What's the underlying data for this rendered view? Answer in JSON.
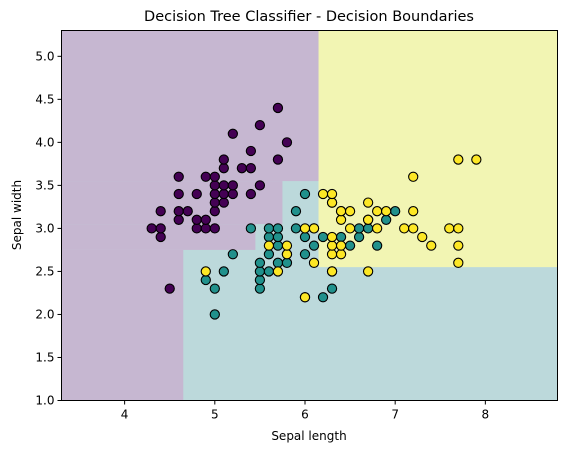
{
  "chart_data": {
    "type": "scatter",
    "title": "Decision Tree Classifier - Decision Boundaries",
    "xlabel": "Sepal length",
    "ylabel": "Sepal width",
    "xlim": [
      3.3,
      8.8
    ],
    "ylim": [
      1.0,
      5.3
    ],
    "xticks": [
      4,
      5,
      6,
      7,
      8
    ],
    "yticks": [
      1.0,
      1.5,
      2.0,
      2.5,
      3.0,
      3.5,
      4.0,
      4.5,
      5.0
    ],
    "xtick_labels": [
      "4",
      "5",
      "6",
      "7",
      "8"
    ],
    "ytick_labels": [
      "1.0",
      "1.5",
      "2.0",
      "2.5",
      "3.0",
      "3.5",
      "4.0",
      "4.5",
      "5.0"
    ],
    "grid": false,
    "legend": "none",
    "colors": {
      "class0": "#440154",
      "class1": "#21918c",
      "class2": "#fde725",
      "region0": "#c6b7d1",
      "region1": "#bcd9db",
      "region2": "#f2f5b3",
      "edge": "#000000"
    },
    "decision_regions": [
      {
        "class": 0,
        "rule": "sepal length < 4.65 and sepal width < 2.75"
      },
      {
        "class": 0,
        "rule": "sepal length < 5.45 and 2.75 <= sepal width < 3.05"
      },
      {
        "class": 0,
        "rule": "sepal length < 6.15 and sepal width >= 3.55"
      },
      {
        "class": 0,
        "rule": "sepal length < 5.75 and 3.05 <= sepal width < 3.55"
      },
      {
        "class": 2,
        "rule": "sepal length >= 6.15 and sepal width >= 2.55"
      },
      {
        "class": 1,
        "rule": "otherwise"
      }
    ],
    "series": [
      {
        "class": 0,
        "points": [
          [
            4.3,
            3.0
          ],
          [
            4.4,
            2.9
          ],
          [
            4.4,
            3.0
          ],
          [
            4.4,
            3.2
          ],
          [
            4.5,
            2.3
          ],
          [
            4.6,
            3.1
          ],
          [
            4.6,
            3.2
          ],
          [
            4.6,
            3.4
          ],
          [
            4.6,
            3.6
          ],
          [
            4.7,
            3.2
          ],
          [
            4.8,
            3.0
          ],
          [
            4.8,
            3.1
          ],
          [
            4.8,
            3.4
          ],
          [
            4.9,
            3.0
          ],
          [
            4.9,
            3.1
          ],
          [
            4.9,
            3.6
          ],
          [
            5.0,
            3.0
          ],
          [
            5.0,
            3.2
          ],
          [
            5.0,
            3.3
          ],
          [
            5.0,
            3.4
          ],
          [
            5.0,
            3.5
          ],
          [
            5.0,
            3.6
          ],
          [
            5.1,
            3.3
          ],
          [
            5.1,
            3.4
          ],
          [
            5.1,
            3.5
          ],
          [
            5.1,
            3.7
          ],
          [
            5.1,
            3.8
          ],
          [
            5.2,
            3.4
          ],
          [
            5.2,
            3.5
          ],
          [
            5.2,
            4.1
          ],
          [
            5.3,
            3.7
          ],
          [
            5.4,
            3.4
          ],
          [
            5.4,
            3.7
          ],
          [
            5.4,
            3.9
          ],
          [
            5.5,
            3.5
          ],
          [
            5.5,
            4.2
          ],
          [
            5.7,
            3.8
          ],
          [
            5.7,
            4.4
          ],
          [
            5.8,
            4.0
          ]
        ]
      },
      {
        "class": 1,
        "points": [
          [
            4.9,
            2.4
          ],
          [
            5.0,
            2.0
          ],
          [
            5.0,
            2.3
          ],
          [
            5.1,
            2.5
          ],
          [
            5.2,
            2.7
          ],
          [
            5.4,
            3.0
          ],
          [
            5.5,
            2.3
          ],
          [
            5.5,
            2.4
          ],
          [
            5.5,
            2.5
          ],
          [
            5.5,
            2.6
          ],
          [
            5.6,
            2.5
          ],
          [
            5.6,
            2.7
          ],
          [
            5.6,
            2.9
          ],
          [
            5.6,
            3.0
          ],
          [
            5.7,
            2.6
          ],
          [
            5.7,
            2.8
          ],
          [
            5.7,
            2.9
          ],
          [
            5.7,
            3.0
          ],
          [
            5.8,
            2.6
          ],
          [
            5.8,
            2.7
          ],
          [
            5.9,
            3.0
          ],
          [
            5.9,
            3.2
          ],
          [
            6.0,
            2.2
          ],
          [
            6.0,
            2.7
          ],
          [
            6.0,
            2.9
          ],
          [
            6.0,
            3.4
          ],
          [
            6.1,
            2.8
          ],
          [
            6.1,
            3.0
          ],
          [
            6.2,
            2.2
          ],
          [
            6.2,
            2.9
          ],
          [
            6.3,
            2.3
          ],
          [
            6.3,
            2.5
          ],
          [
            6.3,
            3.3
          ],
          [
            6.4,
            2.9
          ],
          [
            6.4,
            3.2
          ],
          [
            6.5,
            2.8
          ],
          [
            6.6,
            2.9
          ],
          [
            6.6,
            3.0
          ],
          [
            6.7,
            3.0
          ],
          [
            6.7,
            3.1
          ],
          [
            6.8,
            2.8
          ],
          [
            6.9,
            3.1
          ],
          [
            7.0,
            3.2
          ]
        ]
      },
      {
        "class": 2,
        "points": [
          [
            4.9,
            2.5
          ],
          [
            5.6,
            2.8
          ],
          [
            5.7,
            2.5
          ],
          [
            5.8,
            2.7
          ],
          [
            5.8,
            2.8
          ],
          [
            6.0,
            2.2
          ],
          [
            6.0,
            3.0
          ],
          [
            6.1,
            2.6
          ],
          [
            6.1,
            3.0
          ],
          [
            6.2,
            3.4
          ],
          [
            6.3,
            2.5
          ],
          [
            6.3,
            2.7
          ],
          [
            6.3,
            2.8
          ],
          [
            6.3,
            2.9
          ],
          [
            6.3,
            3.3
          ],
          [
            6.3,
            3.4
          ],
          [
            6.4,
            2.7
          ],
          [
            6.4,
            2.8
          ],
          [
            6.4,
            3.1
          ],
          [
            6.4,
            3.2
          ],
          [
            6.5,
            3.0
          ],
          [
            6.5,
            3.2
          ],
          [
            6.7,
            2.5
          ],
          [
            6.7,
            3.1
          ],
          [
            6.7,
            3.3
          ],
          [
            6.8,
            3.0
          ],
          [
            6.8,
            3.2
          ],
          [
            6.9,
            3.2
          ],
          [
            7.1,
            3.0
          ],
          [
            7.2,
            3.0
          ],
          [
            7.2,
            3.2
          ],
          [
            7.2,
            3.6
          ],
          [
            7.3,
            2.9
          ],
          [
            7.4,
            2.8
          ],
          [
            7.6,
            3.0
          ],
          [
            7.7,
            2.6
          ],
          [
            7.7,
            2.8
          ],
          [
            7.7,
            3.0
          ],
          [
            7.7,
            3.8
          ],
          [
            7.9,
            3.8
          ]
        ]
      }
    ]
  }
}
